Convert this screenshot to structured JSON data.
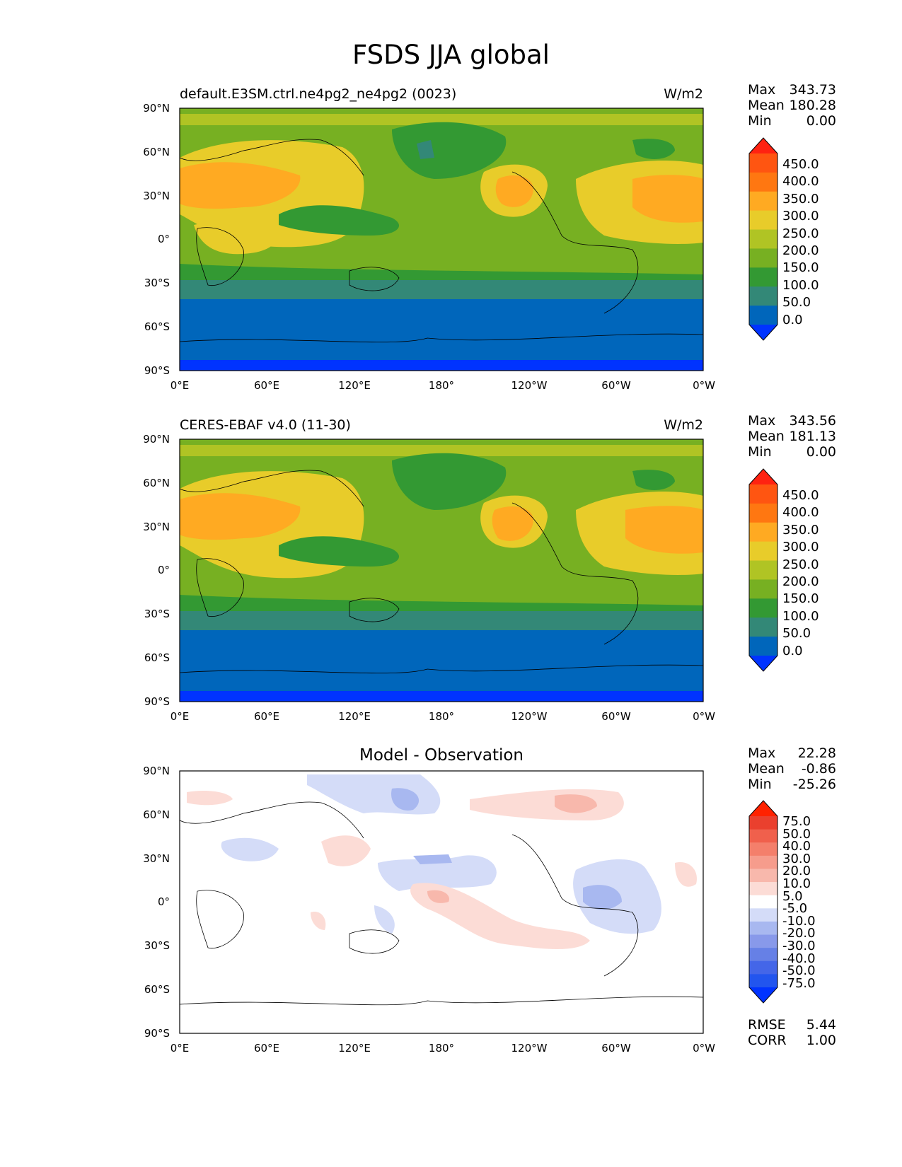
{
  "figure": {
    "title": "FSDS JJA global"
  },
  "axes": {
    "lat_ticks": [
      "90°N",
      "60°N",
      "30°N",
      "0°",
      "30°S",
      "60°S",
      "90°S"
    ],
    "lon_ticks": [
      "0°E",
      "60°E",
      "120°E",
      "180°",
      "120°W",
      "60°W",
      "0°W"
    ]
  },
  "panels": [
    {
      "title": "default.E3SM.ctrl.ne4pg2_ne4pg2 (0023)",
      "units": "W/m2",
      "stats": {
        "max_label": "Max",
        "max": "343.73",
        "mean_label": "Mean",
        "mean": "180.28",
        "min_label": "Min",
        "min": "0.00"
      },
      "colorbar": {
        "labels": [
          "450.0",
          "400.0",
          "350.0",
          "300.0",
          "250.0",
          "200.0",
          "150.0",
          "100.0",
          "50.0",
          "0.0"
        ]
      }
    },
    {
      "title": "CERES-EBAF v4.0 (11-30)",
      "units": "W/m2",
      "stats": {
        "max_label": "Max",
        "max": "343.56",
        "mean_label": "Mean",
        "mean": "181.13",
        "min_label": "Min",
        "min": "0.00"
      },
      "colorbar": {
        "labels": [
          "450.0",
          "400.0",
          "350.0",
          "300.0",
          "250.0",
          "200.0",
          "150.0",
          "100.0",
          "50.0",
          "0.0"
        ]
      }
    },
    {
      "title": "Model - Observation",
      "stats": {
        "max_label": "Max",
        "max": "22.28",
        "mean_label": "Mean",
        "mean": "-0.86",
        "min_label": "Min",
        "min": "-25.26"
      },
      "colorbar": {
        "labels": [
          "75.0",
          "50.0",
          "40.0",
          "30.0",
          "20.0",
          "10.0",
          "5.0",
          "-5.0",
          "-10.0",
          "-20.0",
          "-30.0",
          "-40.0",
          "-50.0",
          "-75.0"
        ]
      },
      "metrics": {
        "rmse_label": "RMSE",
        "rmse": "5.44",
        "corr_label": "CORR",
        "corr": "1.00"
      }
    }
  ],
  "colors": {
    "abs_scale": [
      "#0033ff",
      "#0066bb",
      "#338877",
      "#339933",
      "#77b022",
      "#b0c424",
      "#e8cc2a",
      "#ffaa22",
      "#ff7711",
      "#ff5511",
      "#ff2211"
    ],
    "diff_scale": [
      "#0033ff",
      "#2255ee",
      "#4466e8",
      "#6680e6",
      "#8899ea",
      "#a8b8f0",
      "#d4dcf8",
      "#ffffff",
      "#fcdcd6",
      "#f8b8ac",
      "#f69c8c",
      "#f47f6b",
      "#f0604c",
      "#ea402e",
      "#ff2200"
    ],
    "accent_land_line": "#000000"
  }
}
